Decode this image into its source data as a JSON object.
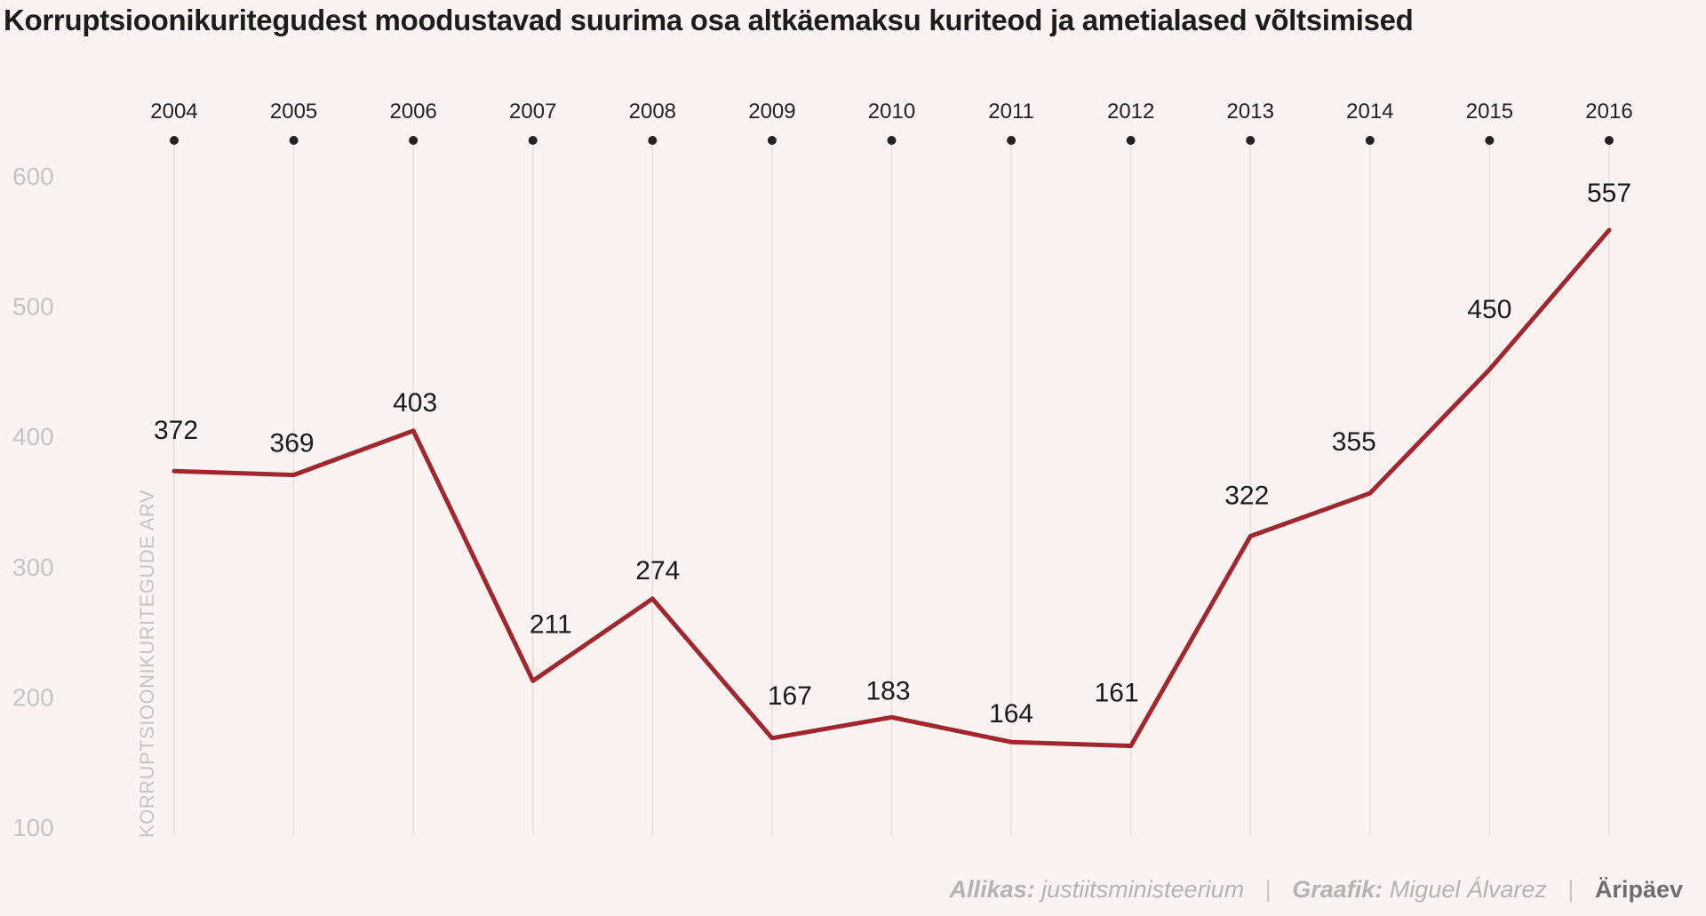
{
  "title": "Korruptsioonikuritegudest moodustavad suurima osa altkäemaksu kuriteod ja ametialased võltsimised",
  "footer": {
    "source_label": "Allikas:",
    "source_value": "justiitsministeerium",
    "graphic_label": "Graafik:",
    "graphic_value": "Miguel Álvarez",
    "brand": "Äripäev"
  },
  "colors": {
    "line": "#a1262d",
    "background": "#fbf3f1",
    "gridline": "#e4dedc",
    "tick_text": "#c4c4c4",
    "marker": "#222222"
  },
  "chart_data": {
    "type": "line",
    "title": "Korruptsioonikuritegudest moodustavad suurima osa altkäemaksu kuriteod ja ametialased võltsimised",
    "xlabel": "",
    "ylabel": "KORRUPTSIOONIKURITEGUDE ARV",
    "x_position": "top",
    "categories": [
      "2004",
      "2005",
      "2006",
      "2007",
      "2008",
      "2009",
      "2010",
      "2011",
      "2012",
      "2013",
      "2014",
      "2015",
      "2016"
    ],
    "series": [
      {
        "values": [
          372,
          369,
          403,
          211,
          274,
          167,
          183,
          164,
          161,
          322,
          355,
          450,
          557
        ]
      }
    ],
    "yticks": [
      100,
      200,
      300,
      400,
      500,
      600
    ],
    "ylim": [
      100,
      600
    ],
    "grid": "vertical",
    "legend": "none",
    "data_labels": true
  }
}
